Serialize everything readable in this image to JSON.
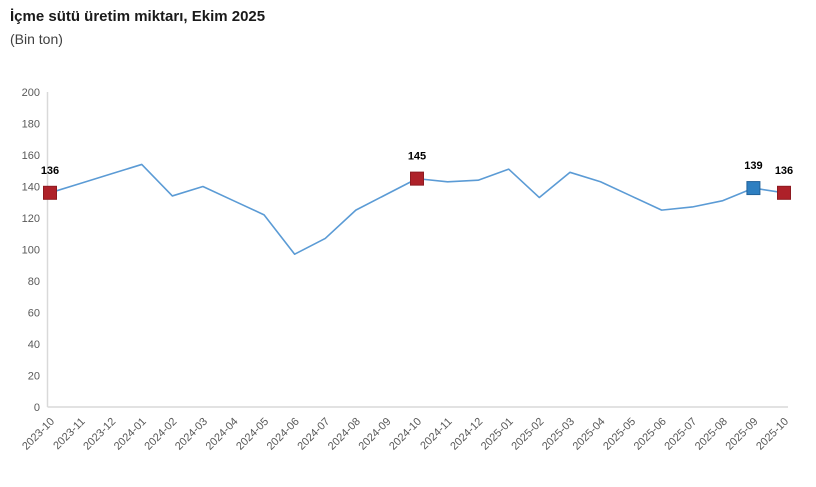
{
  "header": {
    "title": "İçme sütü üretim miktarı, Ekim 2025",
    "subtitle": "(Bin ton)"
  },
  "chart_data": {
    "type": "line",
    "title": "İçme sütü üretim miktarı, Ekim 2025",
    "subtitle": "(Bin ton)",
    "x": [
      "2023-10",
      "2023-11",
      "2023-12",
      "2024-01",
      "2024-02",
      "2024-03",
      "2024-04",
      "2024-05",
      "2024-06",
      "2024-07",
      "2024-08",
      "2024-09",
      "2024-10",
      "2024-11",
      "2024-12",
      "2025-01",
      "2025-02",
      "2025-03",
      "2025-04",
      "2025-05",
      "2025-06",
      "2025-07",
      "2025-08",
      "2025-09",
      "2025-10"
    ],
    "series": [
      {
        "name": "İçme sütü üretim miktarı (bin ton)",
        "values": [
          136,
          142,
          148,
          154,
          134,
          140,
          131,
          122,
          97,
          107,
          125,
          135,
          145,
          143,
          144,
          151,
          133,
          149,
          143,
          134,
          125,
          127,
          131,
          139,
          136
        ]
      }
    ],
    "ylim": [
      0,
      200
    ],
    "ytick_step": 20,
    "grid": false,
    "legend": "none",
    "xlabel": "",
    "ylabel": "",
    "colors": {
      "line": "#5b9bd5",
      "axis": "#d9d9d9",
      "tick_label": "#595959",
      "data_label": "#000000",
      "marker_red": "#ae2129",
      "marker_red_border": "#8d1a20",
      "marker_blue": "#2e7fc1",
      "marker_blue_border": "#22629a"
    },
    "annotations": [
      {
        "x": "2023-10",
        "value": 136,
        "label": "136",
        "marker": "red"
      },
      {
        "x": "2024-10",
        "value": 145,
        "label": "145",
        "marker": "red"
      },
      {
        "x": "2025-09",
        "value": 139,
        "label": "139",
        "marker": "blue"
      },
      {
        "x": "2025-10",
        "value": 136,
        "label": "136",
        "marker": "red"
      }
    ]
  }
}
